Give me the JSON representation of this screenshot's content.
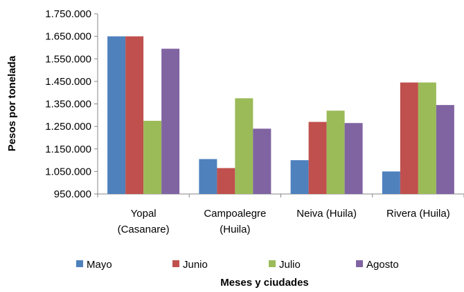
{
  "chart_data": {
    "type": "bar",
    "categories": [
      [
        "Yopal",
        "(Casanare)"
      ],
      [
        "Campoalegre",
        "(Huila)"
      ],
      [
        "Neiva (Huila)"
      ],
      [
        "Rivera (Huila)"
      ]
    ],
    "series": [
      {
        "name": "Mayo",
        "color": "#4f81bd",
        "values": [
          1650000,
          1105000,
          1100000,
          1050000
        ]
      },
      {
        "name": "Junio",
        "color": "#c0504d",
        "values": [
          1650000,
          1065000,
          1270000,
          1445000
        ]
      },
      {
        "name": "Julio",
        "color": "#9bbb59",
        "values": [
          1275000,
          1375000,
          1320000,
          1445000
        ]
      },
      {
        "name": "Agosto",
        "color": "#8064a2",
        "values": [
          1595000,
          1240000,
          1265000,
          1345000
        ]
      }
    ],
    "ylim": [
      950000,
      1750000
    ],
    "yticks": [
      "950.000",
      "1.050.000",
      "1.150.000",
      "1.250.000",
      "1.350.000",
      "1.450.000",
      "1.550.000",
      "1.650.000",
      "1.750.000"
    ],
    "ytick_values": [
      950000,
      1050000,
      1150000,
      1250000,
      1350000,
      1450000,
      1550000,
      1650000,
      1750000
    ],
    "xlabel": "Meses y ciudades",
    "ylabel": "Pesos por tonelada",
    "legend_position": "bottom",
    "grid": false
  }
}
